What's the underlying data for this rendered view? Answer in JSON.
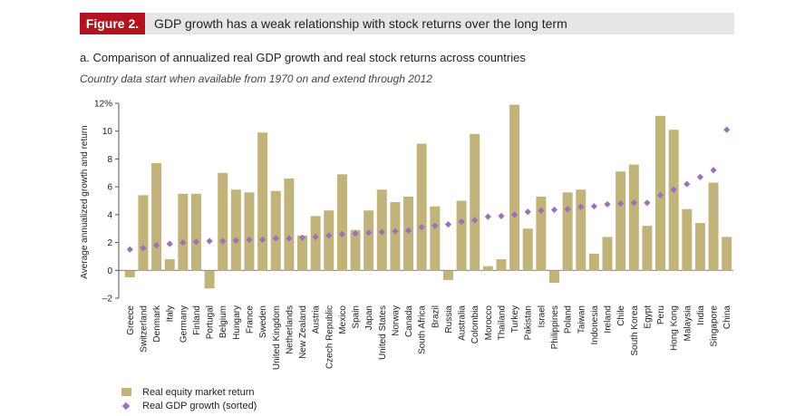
{
  "header": {
    "figure_label": "Figure 2.",
    "title": "GDP growth has a weak relationship with stock returns over the long term"
  },
  "subtitle": "a. Comparison of annualized real GDP growth and real stock returns across countries",
  "note": "Country data start when available from 1970 on and extend through 2012",
  "legend": {
    "equity": "Real equity market return",
    "gdp": "Real GDP growth (sorted)"
  },
  "colors": {
    "bar": "#c2b37a",
    "diamond": "#9b72b6",
    "axis": "#555555"
  },
  "chart_data": {
    "type": "bar",
    "ylabel": "Average annualized growth and return",
    "ylim": [
      -2,
      12
    ],
    "yticks": [
      "–2",
      "0",
      "2",
      "4",
      "6",
      "8",
      "10",
      "12%"
    ],
    "categories": [
      "Greece",
      "Switzerland",
      "Denmark",
      "Italy",
      "Germany",
      "Finland",
      "Portugal",
      "Belgium",
      "Hungary",
      "France",
      "Sweden",
      "United Kingdom",
      "Netherlands",
      "New Zealand",
      "Austria",
      "Czech Republic",
      "Mexico",
      "Spain",
      "Japan",
      "United States",
      "Norway",
      "Canada",
      "South Africa",
      "Brazil",
      "Russia",
      "Australia",
      "Colombia",
      "Morocco",
      "Thailand",
      "Turkey",
      "Pakistan",
      "Israel",
      "Philippines",
      "Poland",
      "Taiwan",
      "Indonesia",
      "Ireland",
      "Chile",
      "South Korea",
      "Egypt",
      "Peru",
      "Hong Kong",
      "Malaysia",
      "India",
      "Singapore",
      "China"
    ],
    "series": [
      {
        "name": "Real equity market return",
        "type": "bar",
        "values": [
          -0.5,
          5.4,
          7.7,
          0.8,
          5.5,
          5.5,
          -1.3,
          7.0,
          5.8,
          5.6,
          9.9,
          5.7,
          6.6,
          2.5,
          3.9,
          4.3,
          6.9,
          2.9,
          4.3,
          5.8,
          4.9,
          5.3,
          9.1,
          4.6,
          -0.7,
          5.0,
          9.8,
          0.3,
          0.8,
          11.9,
          3.0,
          5.3,
          -0.9,
          5.6,
          5.8,
          1.2,
          2.4,
          7.1,
          7.6,
          3.2,
          11.1,
          10.1,
          4.4,
          3.4,
          6.3,
          2.4
        ]
      },
      {
        "name": "Real GDP growth (sorted)",
        "type": "scatter",
        "values": [
          1.5,
          1.6,
          1.8,
          1.9,
          2.0,
          2.05,
          2.1,
          2.1,
          2.15,
          2.2,
          2.2,
          2.3,
          2.3,
          2.35,
          2.4,
          2.5,
          2.6,
          2.65,
          2.7,
          2.75,
          2.8,
          2.85,
          3.1,
          3.2,
          3.3,
          3.5,
          3.6,
          3.85,
          3.9,
          4.0,
          4.2,
          4.3,
          4.35,
          4.4,
          4.55,
          4.6,
          4.75,
          4.8,
          4.85,
          4.85,
          5.4,
          5.8,
          6.2,
          6.7,
          7.2,
          10.1
        ]
      }
    ]
  }
}
